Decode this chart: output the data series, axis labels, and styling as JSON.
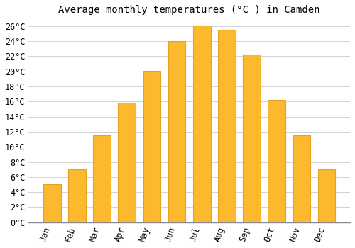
{
  "title": "Average monthly temperatures (°C ) in Camden",
  "months": [
    "Jan",
    "Feb",
    "Mar",
    "Apr",
    "May",
    "Jun",
    "Jul",
    "Aug",
    "Sep",
    "Oct",
    "Nov",
    "Dec"
  ],
  "values": [
    5.0,
    7.0,
    11.5,
    15.8,
    20.1,
    24.0,
    26.1,
    25.5,
    22.2,
    16.2,
    11.5,
    7.0
  ],
  "bar_color": "#FDB92E",
  "bar_edge_color": "#E8A020",
  "background_color": "#FFFFFF",
  "plot_bg_color": "#FFFFFF",
  "grid_color": "#CCCCCC",
  "ylim": [
    0,
    27
  ],
  "yticks": [
    0,
    2,
    4,
    6,
    8,
    10,
    12,
    14,
    16,
    18,
    20,
    22,
    24,
    26
  ],
  "title_fontsize": 10,
  "tick_fontsize": 8.5,
  "font_family": "monospace"
}
